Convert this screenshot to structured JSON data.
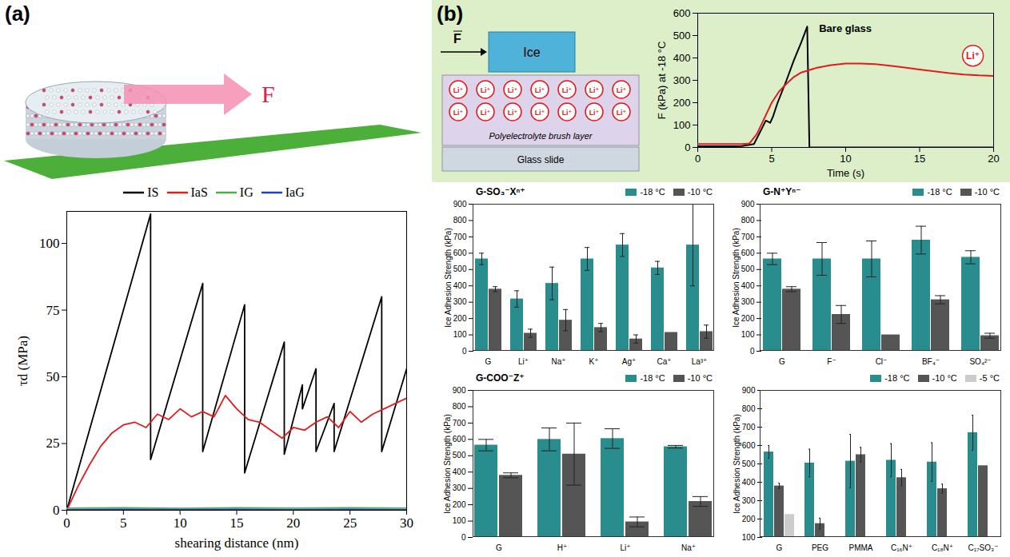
{
  "panel_labels": [
    "(a)",
    "(b)"
  ],
  "illustration_a": {
    "force_label": "F"
  },
  "schematic_b": {
    "force_label": "F",
    "ice_label": "Ice",
    "ion_label": "Li⁺",
    "layer_label": "Polyelectrolyte brush layer",
    "substrate_label": "Glass slide"
  },
  "chart_data": [
    {
      "type": "line",
      "xlabel": "shearing distance (nm)",
      "ylabel": "τd (MPa)",
      "xlim": [
        0,
        30
      ],
      "xticks": [
        0,
        5,
        10,
        15,
        20,
        25,
        30
      ],
      "ylim": [
        0,
        112
      ],
      "yticks": [
        0,
        25,
        50,
        75,
        100
      ],
      "grid": false,
      "legend": "top",
      "series": [
        {
          "name": "IS",
          "color": "#000000",
          "x": [
            0,
            7.4,
            7.4,
            12,
            12,
            15.7,
            15.7,
            19.2,
            19.2,
            20.8,
            20.8,
            22,
            22,
            23.6,
            23.6,
            27.8,
            27.8,
            30
          ],
          "values": [
            0,
            111,
            19,
            85,
            22,
            77,
            14,
            63,
            21,
            47,
            38,
            53,
            22,
            40,
            22,
            80,
            22,
            53
          ]
        },
        {
          "name": "IaS",
          "color": "#e41a1c",
          "x": [
            0,
            1,
            2,
            3,
            4,
            5,
            6,
            7,
            8,
            9,
            10,
            11,
            12,
            13,
            14,
            15,
            16,
            17,
            18,
            19,
            20,
            21,
            22,
            23,
            24,
            25,
            26,
            27,
            28,
            29,
            30
          ],
          "values": [
            0,
            9,
            17,
            24,
            29,
            32,
            33,
            31,
            36,
            34,
            38,
            35,
            37,
            35,
            43,
            38,
            34,
            33,
            30,
            27,
            31,
            30,
            33,
            35,
            31,
            37,
            33,
            36,
            38,
            40,
            42
          ]
        },
        {
          "name": "IG",
          "color": "#4daf4a",
          "x": [
            0,
            5,
            10,
            15,
            20,
            25,
            30
          ],
          "values": [
            0.8,
            0.9,
            0.7,
            0.9,
            0.8,
            0.9,
            0.8
          ]
        },
        {
          "name": "IaG",
          "color": "#1f3fbf",
          "x": [
            0,
            5,
            10,
            15,
            20,
            25,
            30
          ],
          "values": [
            0.2,
            0.3,
            0.2,
            0.3,
            0.2,
            0.3,
            0.2
          ]
        }
      ]
    },
    {
      "type": "line",
      "xlabel": "Time (s)",
      "ylabel": "F (kPa) at -18 °C",
      "xlim": [
        0,
        20
      ],
      "xticks": [
        0,
        5,
        10,
        15,
        20
      ],
      "ylim": [
        0,
        600
      ],
      "yticks": [
        0,
        100,
        200,
        300,
        400,
        500,
        600
      ],
      "grid": false,
      "series": [
        {
          "name": "Bare glass",
          "color": "#000000",
          "label_at": [
            8.2,
            530
          ],
          "x": [
            0,
            1,
            2,
            3,
            3.8,
            4.3,
            4.6,
            4.9,
            5.1,
            5.4,
            6,
            6.5,
            7,
            7.4,
            7.55,
            8,
            10,
            15,
            20
          ],
          "values": [
            5,
            5,
            5,
            6,
            15,
            80,
            120,
            110,
            140,
            200,
            300,
            390,
            470,
            540,
            0,
            0,
            0,
            0,
            0
          ]
        },
        {
          "name": "Li⁺",
          "color": "#e41a1c",
          "label_at": [
            18.6,
            410
          ],
          "x": [
            0,
            1,
            2,
            3,
            3.5,
            4,
            4.5,
            5,
            5.5,
            6,
            6.5,
            7,
            8,
            9,
            10,
            11,
            12,
            13,
            14,
            15,
            16,
            17,
            18,
            19,
            20
          ],
          "values": [
            15,
            15,
            15,
            15,
            18,
            60,
            130,
            200,
            250,
            285,
            315,
            335,
            355,
            368,
            375,
            375,
            372,
            365,
            357,
            348,
            340,
            332,
            326,
            322,
            320
          ]
        }
      ]
    },
    {
      "type": "bar",
      "title": "G-SO₃⁻Xⁿ⁺",
      "ylabel": "Ice Adhesion Strength (kPa)",
      "categories": [
        "G",
        "Li⁺",
        "Na⁺",
        "K⁺",
        "Ag⁺",
        "Ca⁺",
        "La³⁺"
      ],
      "ylim": [
        0,
        900
      ],
      "yticks": [
        0,
        100,
        200,
        300,
        400,
        500,
        600,
        700,
        800,
        900
      ],
      "grid": false,
      "legend": "top",
      "series": [
        {
          "name": "-18 °C",
          "color": "#2a8d8d",
          "values": [
            565,
            320,
            415,
            565,
            650,
            510,
            650
          ],
          "errors": [
            35,
            50,
            100,
            70,
            70,
            40,
            250
          ]
        },
        {
          "name": "-10 °C",
          "color": "#555555",
          "values": [
            380,
            110,
            190,
            145,
            75,
            115,
            120
          ],
          "errors": [
            15,
            25,
            65,
            25,
            25,
            0,
            40
          ]
        }
      ]
    },
    {
      "type": "bar",
      "title": "G-N⁺Yⁿ⁻",
      "ylabel": "Ice Adhesion Strength (kPa)",
      "categories": [
        "G",
        "F⁻",
        "Cl⁻",
        "BF₄⁻",
        "SO₄²⁻"
      ],
      "ylim": [
        0,
        900
      ],
      "yticks": [
        0,
        100,
        200,
        300,
        400,
        500,
        600,
        700,
        800,
        900
      ],
      "grid": false,
      "legend": "top",
      "series": [
        {
          "name": "-18 °C",
          "color": "#2a8d8d",
          "values": [
            565,
            565,
            565,
            680,
            575
          ],
          "errors": [
            35,
            100,
            110,
            85,
            40
          ]
        },
        {
          "name": "-10 °C",
          "color": "#555555",
          "values": [
            380,
            225,
            100,
            315,
            95
          ],
          "errors": [
            15,
            55,
            0,
            25,
            15
          ]
        }
      ]
    },
    {
      "type": "bar",
      "title": "G-COO⁻Z⁺",
      "ylabel": "Ice Adhesion Strength (kPa)",
      "categories": [
        "G",
        "H⁺",
        "Li⁺",
        "Na⁺"
      ],
      "ylim": [
        0,
        900
      ],
      "yticks": [
        0,
        100,
        200,
        300,
        400,
        500,
        600,
        700,
        800,
        900
      ],
      "grid": false,
      "legend": "top",
      "series": [
        {
          "name": "-18 °C",
          "color": "#2a8d8d",
          "values": [
            565,
            600,
            605,
            555
          ],
          "errors": [
            35,
            70,
            60,
            8
          ]
        },
        {
          "name": "-10 °C",
          "color": "#555555",
          "values": [
            380,
            510,
            95,
            220
          ],
          "errors": [
            15,
            190,
            30,
            30
          ]
        }
      ]
    },
    {
      "type": "bar",
      "ylabel": "Ice Adhesion Strength (kPa)",
      "categories": [
        "G",
        "PEG",
        "PMMA",
        "C₁₆N⁺",
        "C₁₈N⁺",
        "C₁₇SO₃⁻"
      ],
      "ylim": [
        100,
        900
      ],
      "yticks": [
        100,
        200,
        300,
        400,
        500,
        600,
        700,
        800,
        900
      ],
      "grid": false,
      "legend": "top",
      "series": [
        {
          "name": "-18 °C",
          "color": "#2a8d8d",
          "values": [
            565,
            505,
            515,
            520,
            510,
            670
          ],
          "errors": [
            35,
            75,
            145,
            90,
            105,
            95
          ]
        },
        {
          "name": "-10 °C",
          "color": "#555555",
          "values": [
            380,
            175,
            550,
            425,
            365,
            490
          ],
          "errors": [
            15,
            30,
            40,
            45,
            25,
            0
          ]
        },
        {
          "name": "-5 °C",
          "color": "#cccccc",
          "values": [
            225,
            null,
            null,
            null,
            null,
            null
          ],
          "errors": [
            0,
            null,
            null,
            null,
            null,
            null
          ]
        }
      ]
    }
  ]
}
